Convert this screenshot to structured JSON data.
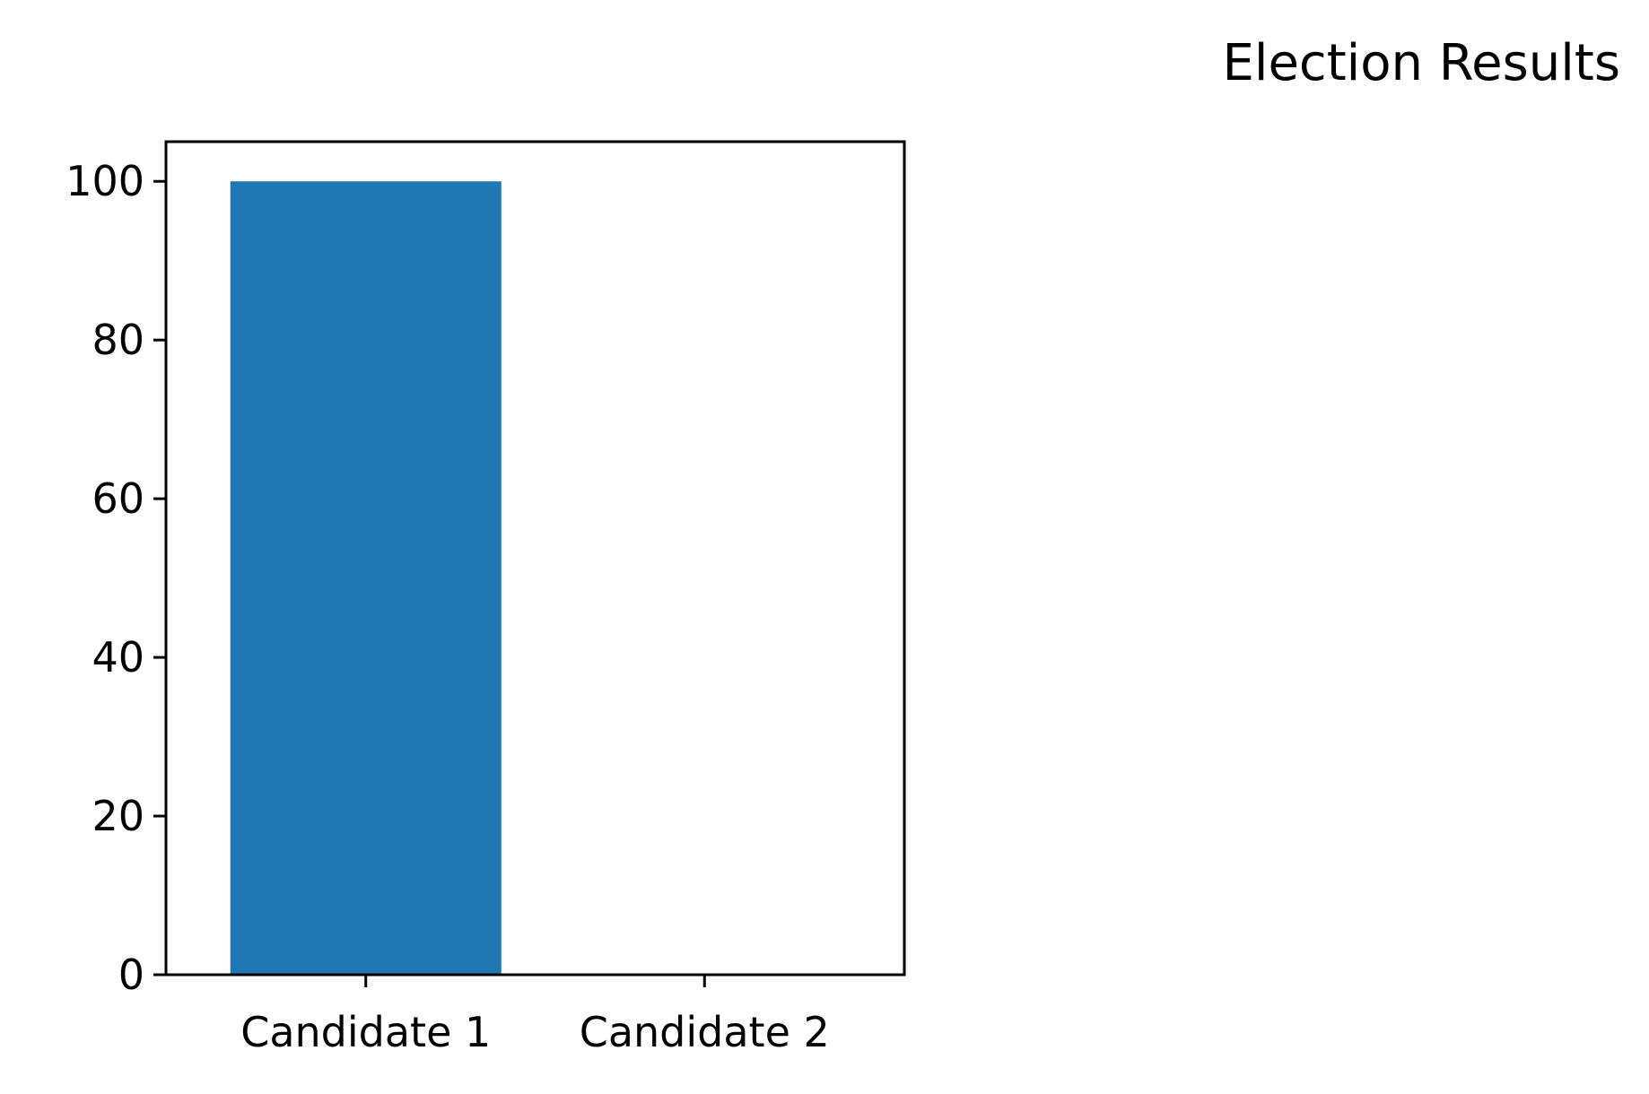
{
  "chart_data": {
    "type": "bar",
    "title": "Election Results",
    "xlabel": "",
    "ylabel": "",
    "categories": [
      "Candidate 1",
      "Candidate 2"
    ],
    "values": [
      100,
      0
    ],
    "ylim": [
      0,
      105
    ],
    "yticks": [
      0,
      20,
      40,
      60,
      80,
      100
    ],
    "grid": false,
    "legend": "none",
    "bar_color": "#1f77b4"
  }
}
